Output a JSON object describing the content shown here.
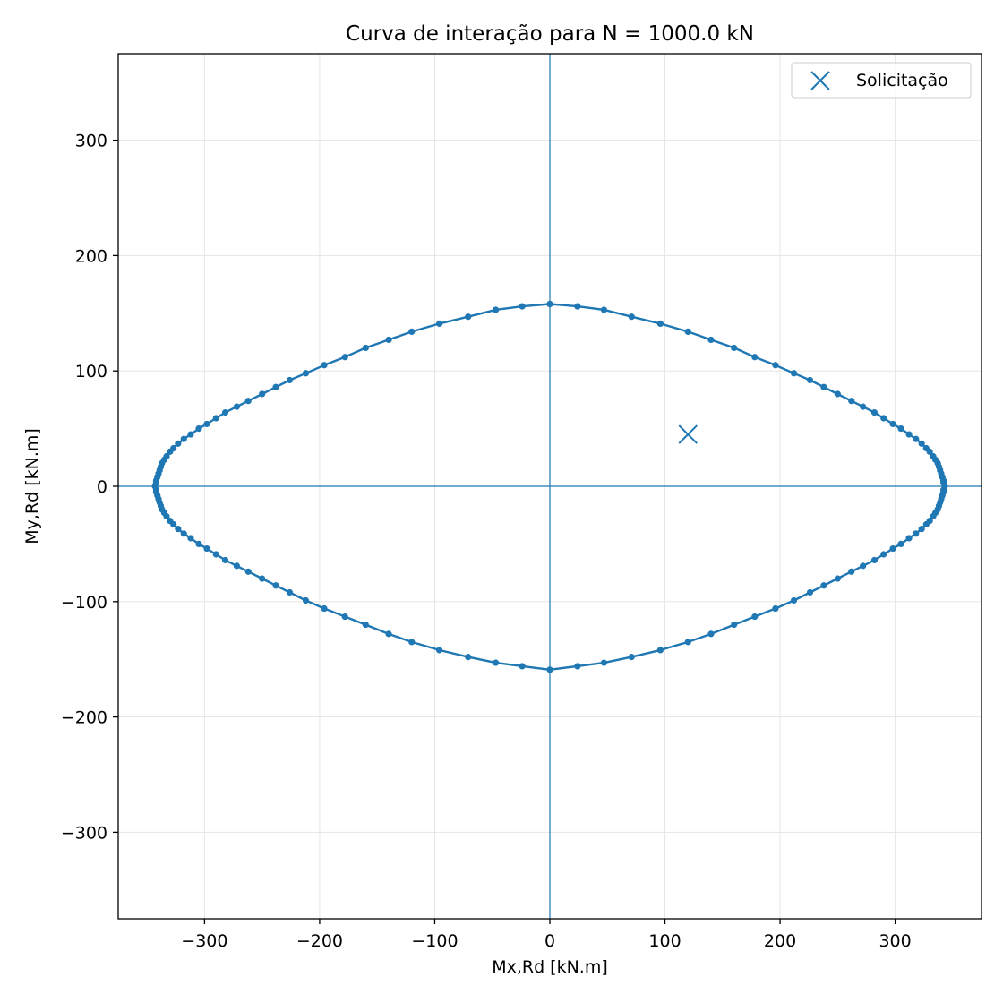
{
  "chart_data": {
    "type": "line",
    "title": "Curva de interação para N = 1000.0 kN",
    "xlabel": "Mx,Rd [kN.m]",
    "ylabel": "My,Rd [kN.m]",
    "xlim": [
      -375,
      375
    ],
    "ylim": [
      -375,
      375
    ],
    "xticks": [
      -300,
      -200,
      -100,
      0,
      100,
      200,
      300
    ],
    "yticks": [
      -300,
      -200,
      -100,
      0,
      100,
      200,
      300
    ],
    "xtick_labels": [
      "−300",
      "−200",
      "−100",
      "0",
      "100",
      "200",
      "300"
    ],
    "ytick_labels": [
      "−300",
      "−200",
      "−100",
      "0",
      "100",
      "200",
      "300"
    ],
    "grid": true,
    "reference_lines": {
      "x": 0,
      "y": 0
    },
    "legend": {
      "location": "upper right",
      "entries": [
        "Solicitação"
      ]
    },
    "colors": {
      "series": "#1f77b4",
      "grid": "#e5e5e5"
    },
    "series": [
      {
        "type": "line_markers",
        "points": [
          [
            0,
            158
          ],
          [
            24,
            156
          ],
          [
            47,
            153
          ],
          [
            71,
            147
          ],
          [
            96,
            141
          ],
          [
            120,
            134
          ],
          [
            140,
            127
          ],
          [
            160,
            120
          ],
          [
            178,
            112
          ],
          [
            196,
            105
          ],
          [
            212,
            98
          ],
          [
            226,
            92
          ],
          [
            238,
            86
          ],
          [
            250,
            80
          ],
          [
            262,
            74
          ],
          [
            272,
            69
          ],
          [
            282,
            64
          ],
          [
            290,
            59
          ],
          [
            298,
            54
          ],
          [
            305,
            50
          ],
          [
            312,
            45
          ],
          [
            318,
            41
          ],
          [
            323,
            37
          ],
          [
            327,
            33
          ],
          [
            330,
            30
          ],
          [
            333,
            26
          ],
          [
            335,
            23
          ],
          [
            337,
            20
          ],
          [
            338,
            17
          ],
          [
            339,
            14
          ],
          [
            340,
            11
          ],
          [
            341,
            8
          ],
          [
            342,
            5
          ],
          [
            342,
            3
          ],
          [
            343,
            0
          ],
          [
            342,
            -3
          ],
          [
            342,
            -5
          ],
          [
            341,
            -8
          ],
          [
            340,
            -11
          ],
          [
            339,
            -14
          ],
          [
            338,
            -17
          ],
          [
            337,
            -20
          ],
          [
            335,
            -23
          ],
          [
            333,
            -26
          ],
          [
            330,
            -30
          ],
          [
            327,
            -33
          ],
          [
            323,
            -37
          ],
          [
            318,
            -41
          ],
          [
            312,
            -45
          ],
          [
            305,
            -50
          ],
          [
            298,
            -54
          ],
          [
            290,
            -59
          ],
          [
            282,
            -64
          ],
          [
            272,
            -69
          ],
          [
            262,
            -74
          ],
          [
            250,
            -80
          ],
          [
            238,
            -86
          ],
          [
            226,
            -92
          ],
          [
            212,
            -99
          ],
          [
            196,
            -106
          ],
          [
            178,
            -113
          ],
          [
            160,
            -120
          ],
          [
            140,
            -128
          ],
          [
            120,
            -135
          ],
          [
            96,
            -142
          ],
          [
            71,
            -148
          ],
          [
            47,
            -153
          ],
          [
            24,
            -156
          ],
          [
            0,
            -159
          ],
          [
            -24,
            -156
          ],
          [
            -47,
            -153
          ],
          [
            -71,
            -148
          ],
          [
            -96,
            -142
          ],
          [
            -120,
            -135
          ],
          [
            -140,
            -128
          ],
          [
            -160,
            -120
          ],
          [
            -178,
            -113
          ],
          [
            -196,
            -106
          ],
          [
            -212,
            -99
          ],
          [
            -226,
            -92
          ],
          [
            -238,
            -86
          ],
          [
            -250,
            -80
          ],
          [
            -262,
            -74
          ],
          [
            -272,
            -69
          ],
          [
            -282,
            -64
          ],
          [
            -290,
            -59
          ],
          [
            -298,
            -54
          ],
          [
            -305,
            -50
          ],
          [
            -312,
            -45
          ],
          [
            -318,
            -41
          ],
          [
            -323,
            -37
          ],
          [
            -327,
            -33
          ],
          [
            -330,
            -30
          ],
          [
            -333,
            -26
          ],
          [
            -335,
            -23
          ],
          [
            -337,
            -20
          ],
          [
            -338,
            -17
          ],
          [
            -339,
            -14
          ],
          [
            -340,
            -11
          ],
          [
            -341,
            -8
          ],
          [
            -342,
            -5
          ],
          [
            -342,
            -3
          ],
          [
            -343,
            0
          ],
          [
            -342,
            3
          ],
          [
            -342,
            5
          ],
          [
            -341,
            8
          ],
          [
            -340,
            11
          ],
          [
            -339,
            14
          ],
          [
            -338,
            17
          ],
          [
            -337,
            20
          ],
          [
            -335,
            23
          ],
          [
            -333,
            26
          ],
          [
            -330,
            30
          ],
          [
            -327,
            33
          ],
          [
            -323,
            37
          ],
          [
            -318,
            41
          ],
          [
            -312,
            45
          ],
          [
            -305,
            50
          ],
          [
            -298,
            54
          ],
          [
            -290,
            59
          ],
          [
            -282,
            64
          ],
          [
            -272,
            69
          ],
          [
            -262,
            74
          ],
          [
            -250,
            80
          ],
          [
            -238,
            86
          ],
          [
            -226,
            92
          ],
          [
            -212,
            98
          ],
          [
            -196,
            105
          ],
          [
            -178,
            112
          ],
          [
            -160,
            120
          ],
          [
            -140,
            127
          ],
          [
            -120,
            134
          ],
          [
            -96,
            141
          ],
          [
            -71,
            147
          ],
          [
            -47,
            153
          ],
          [
            -24,
            156
          ],
          [
            0,
            158
          ]
        ]
      },
      {
        "name": "Solicitação",
        "type": "scatter",
        "marker": "x",
        "points": [
          [
            120,
            45
          ]
        ]
      }
    ]
  }
}
